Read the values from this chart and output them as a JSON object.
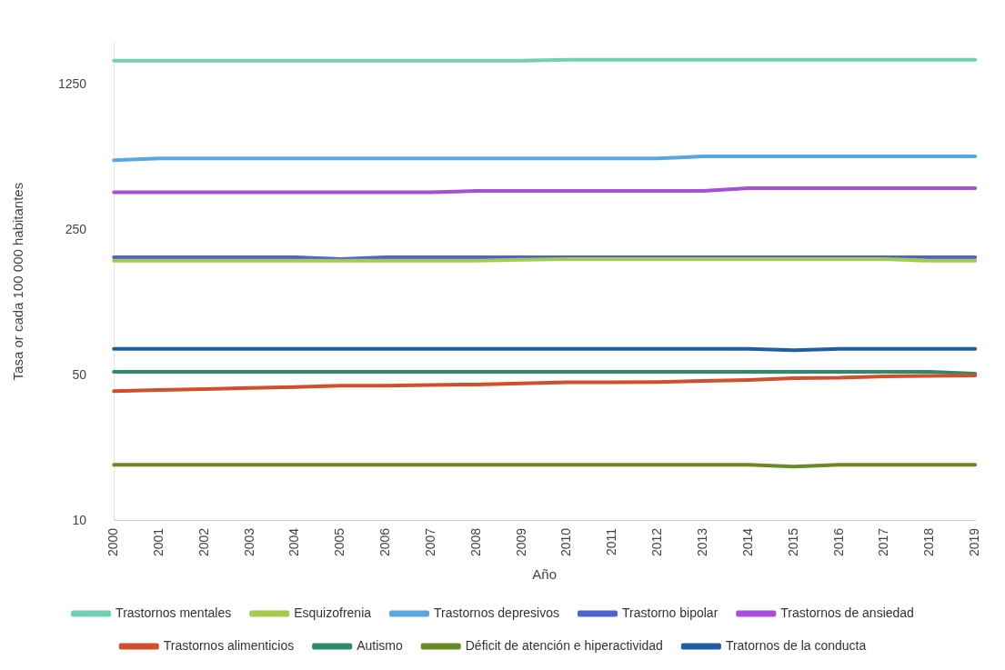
{
  "chart_data": {
    "type": "line",
    "xlabel": "Año",
    "ylabel": "Tasa or cada 100 000 habitantes",
    "categories": [
      "2000",
      "2001",
      "2002",
      "2003",
      "2004",
      "2005",
      "2006",
      "2007",
      "2008",
      "2009",
      "2010",
      "2011",
      "2012",
      "2013",
      "2014",
      "2015",
      "2016",
      "2017",
      "2018",
      "2019"
    ],
    "log": "y",
    "ylim": [
      10,
      2000
    ],
    "yticks": [
      10,
      50,
      250,
      1250
    ],
    "grid": false,
    "legend": "bottom",
    "marker": "none",
    "line_style": "solid",
    "series": [
      {
        "name": "Trastornos mentales",
        "color": "#6fd0b5",
        "values": [
          1630,
          1630,
          1630,
          1630,
          1630,
          1630,
          1630,
          1630,
          1630,
          1630,
          1645,
          1645,
          1645,
          1645,
          1645,
          1645,
          1645,
          1645,
          1645,
          1645
        ]
      },
      {
        "name": "Esquizofrenia",
        "color": "#a3cc4f",
        "values": [
          178,
          178,
          178,
          178,
          178,
          178,
          178,
          178,
          178,
          180,
          181,
          181,
          181,
          181,
          181,
          181,
          181,
          181,
          178,
          178
        ]
      },
      {
        "name": "Trastornos depresivos",
        "color": "#5aa6e0",
        "values": [
          541,
          552,
          552,
          552,
          552,
          552,
          552,
          552,
          552,
          552,
          552,
          552,
          552,
          565,
          565,
          565,
          565,
          565,
          565,
          565
        ]
      },
      {
        "name": "Trastorno bipolar",
        "color": "#4f62d0",
        "values": [
          185,
          185,
          185,
          185,
          185,
          181,
          185,
          185,
          185,
          185,
          185,
          185,
          185,
          185,
          185,
          185,
          185,
          185,
          185,
          185
        ]
      },
      {
        "name": "Trastornos de ansiedad",
        "color": "#a64fd8",
        "values": [
          380,
          380,
          380,
          380,
          380,
          380,
          380,
          380,
          385,
          385,
          385,
          385,
          385,
          385,
          397,
          397,
          397,
          397,
          397,
          397
        ]
      },
      {
        "name": "Trastornos alimenticios",
        "color": "#d0502e",
        "values": [
          42,
          42.5,
          43,
          43.5,
          44,
          44.6,
          44.6,
          45,
          45.2,
          45.7,
          46.3,
          46.3,
          46.5,
          47,
          47.5,
          48.5,
          48.7,
          49.5,
          49.7,
          50
        ]
      },
      {
        "name": "Autismo",
        "color": "#2f8a6a",
        "values": [
          52,
          52,
          52,
          52,
          52,
          52,
          52,
          52,
          52,
          52,
          52,
          52,
          52,
          52,
          52,
          52,
          52,
          52,
          52,
          51
        ]
      },
      {
        "name": "Déficit de atención e hiperactividad",
        "color": "#6a8a23",
        "values": [
          18.6,
          18.6,
          18.6,
          18.6,
          18.6,
          18.6,
          18.6,
          18.6,
          18.6,
          18.6,
          18.6,
          18.6,
          18.6,
          18.6,
          18.6,
          18.2,
          18.6,
          18.6,
          18.6,
          18.6
        ]
      },
      {
        "name": "Tratornos de la conducta",
        "color": "#1f5f9f",
        "values": [
          67,
          67,
          67,
          67,
          67,
          67,
          67,
          67,
          67,
          67,
          67,
          67,
          67,
          67,
          67,
          66,
          67,
          67,
          67,
          67
        ]
      }
    ]
  }
}
